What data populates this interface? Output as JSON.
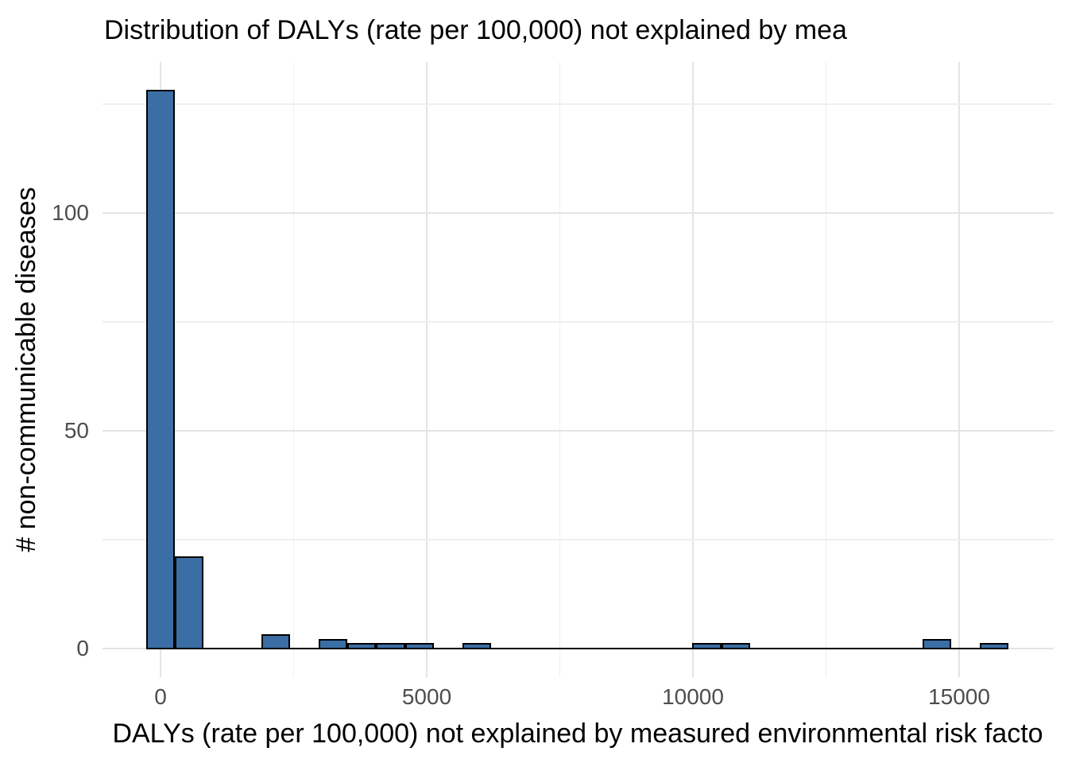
{
  "chart_data": {
    "type": "histogram",
    "title": "Distribution of DALYs (rate per 100,000) not explained by mea",
    "xlabel": "DALYs (rate per 100,000) not explained by measured environmental risk facto",
    "ylabel": "# non-communicable diseases",
    "x_ticks": [
      0,
      5000,
      10000,
      15000
    ],
    "x_minor_gridlines": [
      2500,
      7500,
      12500
    ],
    "y_ticks": [
      0,
      50,
      100
    ],
    "y_minor_gridlines": [
      25,
      75,
      125
    ],
    "xlim": [
      -1090,
      16780
    ],
    "ylim": [
      -7,
      134.5
    ],
    "bin_width": 540,
    "bars": [
      {
        "bin_center": 0,
        "count": 128
      },
      {
        "bin_center": 540,
        "count": 21
      },
      {
        "bin_center": 2160,
        "count": 3
      },
      {
        "bin_center": 3240,
        "count": 2
      },
      {
        "bin_center": 3780,
        "count": 1
      },
      {
        "bin_center": 4320,
        "count": 1
      },
      {
        "bin_center": 4860,
        "count": 1
      },
      {
        "bin_center": 5940,
        "count": 1
      },
      {
        "bin_center": 10260,
        "count": 1
      },
      {
        "bin_center": 10800,
        "count": 1
      },
      {
        "bin_center": 14580,
        "count": 2
      },
      {
        "bin_center": 15660,
        "count": 1
      }
    ],
    "zero_line_extent": [
      -270,
      15930
    ],
    "grid": true,
    "legend_position": "none",
    "colors": {
      "bar_fill": "#3b6ea5",
      "bar_stroke": "#000000",
      "grid_major": "#e4e4e4",
      "grid_minor": "#efefef",
      "tick_label_color": "#4d4d4d",
      "text_color": "#000000",
      "background": "#ffffff"
    }
  }
}
